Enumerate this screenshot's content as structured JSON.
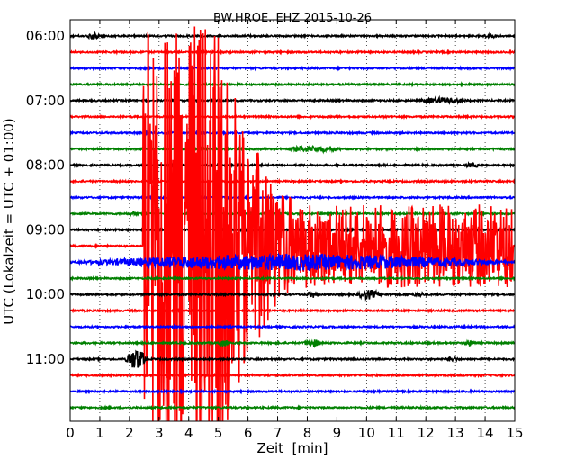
{
  "chart_data": {
    "type": "line",
    "title": "BW.HROE..EHZ 2015-10-26",
    "xlabel": "Zeit  [min]",
    "ylabel": "UTC (Lokalzeit = UTC + 01:00)",
    "xlim": [
      0,
      15
    ],
    "x_ticks": [
      "0",
      "1",
      "2",
      "3",
      "4",
      "5",
      "6",
      "7",
      "8",
      "9",
      "10",
      "11",
      "12",
      "13",
      "14",
      "15"
    ],
    "y_tick_labels": [
      "06:00",
      "07:00",
      "08:00",
      "09:00",
      "10:00",
      "11:00"
    ],
    "y_tick_trace_index": [
      0,
      4,
      8,
      12,
      16,
      20
    ],
    "grid": "vertical dotted every 1 min",
    "trace_minutes": 15,
    "trace_colors": [
      "#000000",
      "#ff0000",
      "#0000ff",
      "#008000"
    ],
    "traces": [
      {
        "start": "06:00",
        "color": "#000000",
        "events": [
          {
            "t": 0.6,
            "amp": 0.3
          },
          {
            "t": 14.0,
            "amp": 0.15
          }
        ]
      },
      {
        "start": "06:15",
        "color": "#ff0000",
        "events": []
      },
      {
        "start": "06:30",
        "color": "#0000ff",
        "events": []
      },
      {
        "start": "06:45",
        "color": "#008000",
        "events": []
      },
      {
        "start": "07:00",
        "color": "#000000",
        "events": [
          {
            "t": 11.8,
            "amp": 0.25,
            "dur": 1.6
          }
        ]
      },
      {
        "start": "07:15",
        "color": "#ff0000",
        "events": []
      },
      {
        "start": "07:30",
        "color": "#0000ff",
        "events": []
      },
      {
        "start": "07:45",
        "color": "#008000",
        "events": [
          {
            "t": 7.2,
            "amp": 0.25,
            "dur": 2.0
          }
        ]
      },
      {
        "start": "08:00",
        "color": "#000000",
        "events": [
          {
            "t": 13.4,
            "amp": 0.2
          }
        ]
      },
      {
        "start": "08:15",
        "color": "#ff0000",
        "events": []
      },
      {
        "start": "08:30",
        "color": "#0000ff",
        "events": []
      },
      {
        "start": "08:45",
        "color": "#008000",
        "events": [
          {
            "t": 2.0,
            "amp": 0.15
          }
        ]
      },
      {
        "start": "09:00",
        "color": "#000000",
        "events": []
      },
      {
        "start": "09:15",
        "color": "#ff0000",
        "events": [
          {
            "t": 2.45,
            "amp": 14.0,
            "dur": 12.5,
            "quake": true
          }
        ]
      },
      {
        "start": "09:30",
        "color": "#0000ff",
        "events": [
          {
            "t": 0.1,
            "amp": 0.8,
            "dur": 15
          }
        ]
      },
      {
        "start": "09:45",
        "color": "#008000",
        "events": []
      },
      {
        "start": "10:00",
        "color": "#000000",
        "events": [
          {
            "t": 8.0,
            "amp": 0.3
          },
          {
            "t": 9.7,
            "amp": 0.45,
            "dur": 0.8
          },
          {
            "t": 11.6,
            "amp": 0.2
          }
        ]
      },
      {
        "start": "10:15",
        "color": "#ff0000",
        "events": []
      },
      {
        "start": "10:30",
        "color": "#0000ff",
        "events": []
      },
      {
        "start": "10:45",
        "color": "#008000",
        "events": [
          {
            "t": 5.0,
            "amp": 0.3
          },
          {
            "t": 7.9,
            "amp": 0.35,
            "dur": 0.6
          },
          {
            "t": 13.3,
            "amp": 0.2
          }
        ]
      },
      {
        "start": "11:00",
        "color": "#000000",
        "events": [
          {
            "t": 1.9,
            "amp": 1.1,
            "dur": 0.7
          },
          {
            "t": 12.7,
            "amp": 0.2
          }
        ]
      },
      {
        "start": "11:15",
        "color": "#ff0000",
        "events": []
      },
      {
        "start": "11:30",
        "color": "#0000ff",
        "events": []
      },
      {
        "start": "11:45",
        "color": "#008000",
        "events": []
      }
    ]
  }
}
